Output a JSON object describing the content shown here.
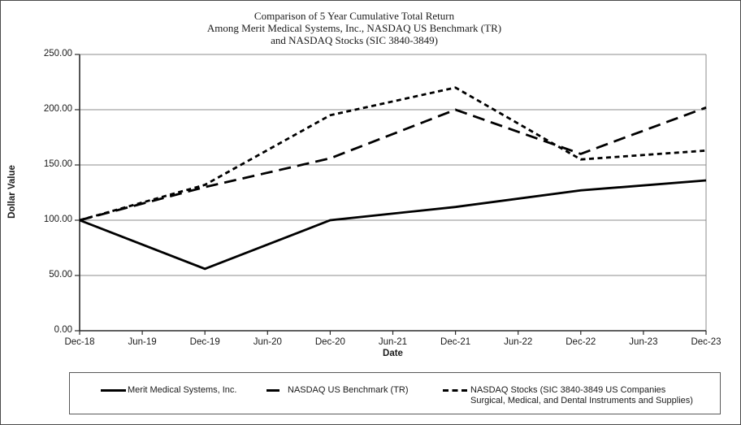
{
  "header": {
    "title_line1": "Comparison of 5 Year Cumulative Total Return",
    "title_line2": "Among Merit Medical Systems, Inc., NASDAQ US Benchmark  (TR)",
    "title_line3": "and NASDAQ Stocks (SIC 3840-3849)"
  },
  "chart_data": {
    "type": "line",
    "title": "Comparison of 5 Year Cumulative Total Return Among Merit Medical Systems, Inc., NASDAQ US Benchmark (TR) and NASDAQ Stocks (SIC 3840-3849)",
    "xlabel": "Date",
    "ylabel": "Dollar Value",
    "ylim": [
      0,
      250
    ],
    "grid": true,
    "legend_position": "bottom",
    "line_color": "#000000",
    "gridline_color": "#8c8c8c",
    "axis_color": "#2b2b2b",
    "y_tick_values": [
      0,
      50,
      100,
      150,
      200,
      250
    ],
    "y_tick_labels": [
      "0.00",
      "50.00",
      "100.00",
      "150.00",
      "200.00",
      "250.00"
    ],
    "x_tick_labels": [
      "Dec-18",
      "Jun-19",
      "Dec-19",
      "Jun-20",
      "Dec-20",
      "Jun-21",
      "Dec-21",
      "Jun-22",
      "Dec-22",
      "Jun-23",
      "Dec-23"
    ],
    "categories": [
      "Dec-18",
      "Dec-19",
      "Dec-20",
      "Dec-21",
      "Dec-22",
      "Dec-23"
    ],
    "series": [
      {
        "name": "Merit Medical Systems, Inc.",
        "style": "solid",
        "values": [
          100,
          56,
          100,
          112,
          127,
          136
        ]
      },
      {
        "name": "NASDAQ US Benchmark  (TR)",
        "style": "long-dash",
        "values": [
          100,
          130,
          156,
          200,
          160,
          202
        ]
      },
      {
        "name": "NASDAQ Stocks (SIC 3840-3849)",
        "style": "short-dash",
        "values": [
          100,
          132,
          195,
          220,
          155,
          163
        ]
      }
    ]
  },
  "legend": {
    "items": [
      {
        "label": "Merit Medical Systems, Inc."
      },
      {
        "label": "NASDAQ US Benchmark  (TR)"
      },
      {
        "label": "NASDAQ Stocks (SIC 3840-3849 US Companies",
        "label2": "Surgical, Medical, and Dental Instruments and Supplies)"
      }
    ]
  }
}
